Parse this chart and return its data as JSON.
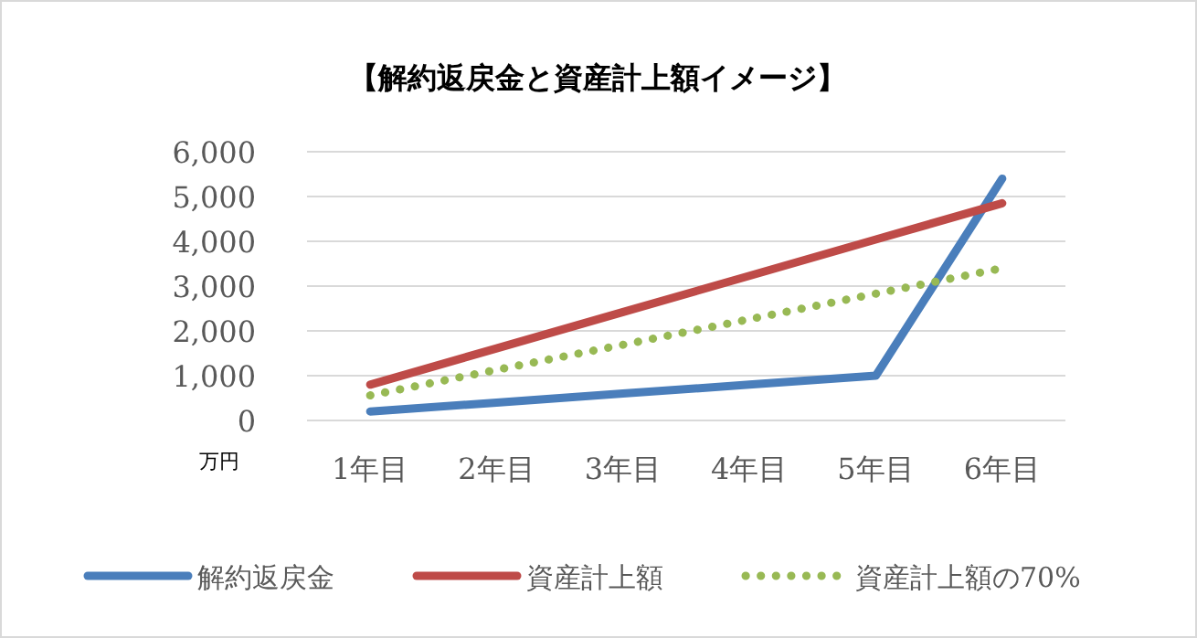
{
  "chart_data": {
    "type": "line",
    "title": "【解約返戻金と資産計上額イメージ】",
    "ylabel": "万円",
    "categories": [
      "1年目",
      "2年目",
      "3年目",
      "4年目",
      "5年目",
      "6年目"
    ],
    "series": [
      {
        "name": "解約返戻金",
        "color": "#4a7ebb",
        "values": [
          200,
          400,
          600,
          800,
          1000,
          5400
        ]
      },
      {
        "name": "資産計上額",
        "color": "#be4b48",
        "values": [
          800,
          1610,
          2420,
          3230,
          4040,
          4850
        ]
      },
      {
        "name": "資産計上額の70%",
        "color": "#98b954",
        "values": [
          560,
          1130,
          1690,
          2260,
          2830,
          3400
        ],
        "line_style": "dotted"
      }
    ],
    "ylim": [
      0,
      6000
    ],
    "yticks": [
      {
        "value": 0,
        "label": "0"
      },
      {
        "value": 1000,
        "label": "1,000"
      },
      {
        "value": 2000,
        "label": "2,000"
      },
      {
        "value": 3000,
        "label": "3,000"
      },
      {
        "value": 4000,
        "label": "4,000"
      },
      {
        "value": 5000,
        "label": "5,000"
      },
      {
        "value": 6000,
        "label": "6,000"
      }
    ],
    "grid": "y",
    "legend": "bottom"
  }
}
